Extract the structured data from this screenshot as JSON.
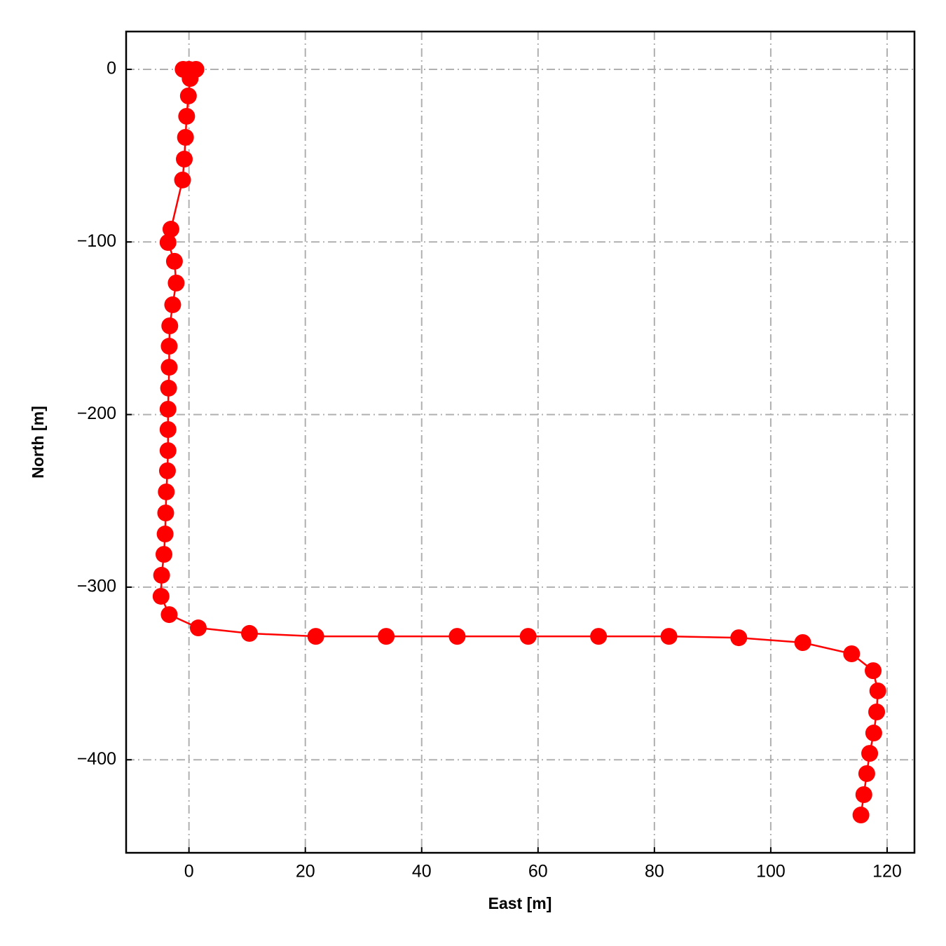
{
  "chart_data": {
    "type": "line",
    "xlabel": "East [m]",
    "ylabel": "North [m]",
    "x": [
      -1.0,
      0,
      1.2,
      0.2,
      -0.1,
      -0.4,
      -0.6,
      -0.8,
      -1.1,
      -3.1,
      -3.6,
      -2.5,
      -2.2,
      -2.8,
      -3.3,
      -3.4,
      -3.4,
      -3.5,
      -3.6,
      -3.6,
      -3.6,
      -3.7,
      -3.9,
      -4.0,
      -4.1,
      -4.3,
      -4.7,
      -4.8,
      -3.4,
      1.6,
      10.4,
      21.8,
      33.9,
      46.1,
      58.3,
      70.4,
      82.5,
      94.5,
      105.5,
      113.9,
      117.6,
      118.4,
      118.2,
      117.7,
      117.0,
      116.5,
      116.0,
      115.5
    ],
    "series": [
      {
        "color": "#ff0000",
        "values": [
          0,
          0,
          0,
          -5.3,
          -15.4,
          -27.2,
          -39.4,
          -52.0,
          -64.1,
          -92.6,
          -100.3,
          -111.2,
          -123.8,
          -136.4,
          -148.6,
          -160.4,
          -172.6,
          -184.7,
          -196.9,
          -208.7,
          -220.9,
          -232.6,
          -244.8,
          -257.0,
          -269.2,
          -281.0,
          -293.1,
          -305.3,
          -315.9,
          -323.6,
          -326.8,
          -328.5,
          -328.5,
          -328.5,
          -328.5,
          -328.5,
          -328.5,
          -329.3,
          -332.1,
          -338.6,
          -348.4,
          -360.1,
          -372.3,
          -384.5,
          -396.3,
          -408.0,
          -420.2,
          -432.0
        ]
      }
    ],
    "xlim": [
      -10.8,
      124.7
    ],
    "ylim": [
      -453.9,
      21.9
    ],
    "xticks": [
      0,
      20,
      40,
      60,
      80,
      100,
      120
    ],
    "yticks": [
      0,
      {
        "value": -100,
        "label": "−100"
      },
      {
        "value": -200,
        "label": "−200"
      },
      {
        "value": -300,
        "label": "−300"
      },
      {
        "value": -400,
        "label": "−400"
      }
    ],
    "grid": true
  }
}
